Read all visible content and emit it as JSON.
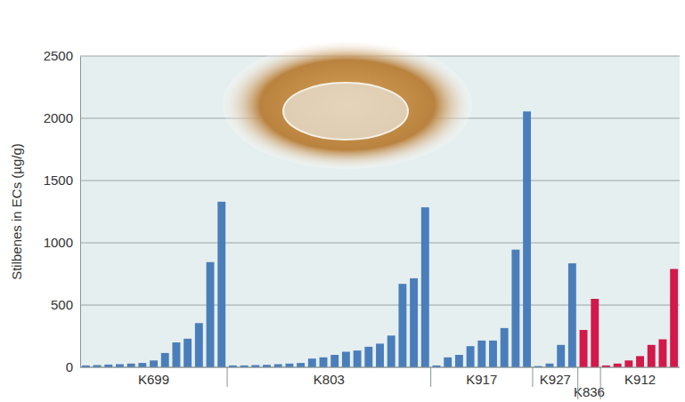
{
  "chart_data": {
    "type": "bar",
    "ylabel": "Stilbenes in ECs (µg/g)",
    "series": [
      {
        "name": "K699",
        "color": "#4a7ebb",
        "values": [
          15,
          18,
          22,
          25,
          30,
          35,
          55,
          115,
          200,
          230,
          355,
          845,
          1330
        ]
      },
      {
        "name": "K803",
        "color": "#4a7ebb",
        "values": [
          15,
          15,
          18,
          20,
          25,
          30,
          35,
          70,
          80,
          100,
          125,
          135,
          165,
          190,
          255,
          670,
          715,
          1285
        ]
      },
      {
        "name": "K917",
        "color": "#4a7ebb",
        "values": [
          15,
          80,
          100,
          170,
          215,
          215,
          315,
          945,
          2055
        ]
      },
      {
        "name": "K927",
        "color": "#4a7ebb",
        "values": [
          10,
          30,
          180,
          835
        ]
      },
      {
        "name": "K836",
        "color": "#d3184a",
        "values": [
          300,
          550
        ]
      },
      {
        "name": "K912",
        "color": "#d3184a",
        "values": [
          15,
          30,
          55,
          90,
          180,
          225,
          790
        ]
      }
    ],
    "ylim": [
      0,
      2500
    ],
    "yticks": [
      0,
      500,
      1000,
      1500,
      2000,
      2500
    ],
    "grid": true,
    "tick_labels": "y"
  }
}
